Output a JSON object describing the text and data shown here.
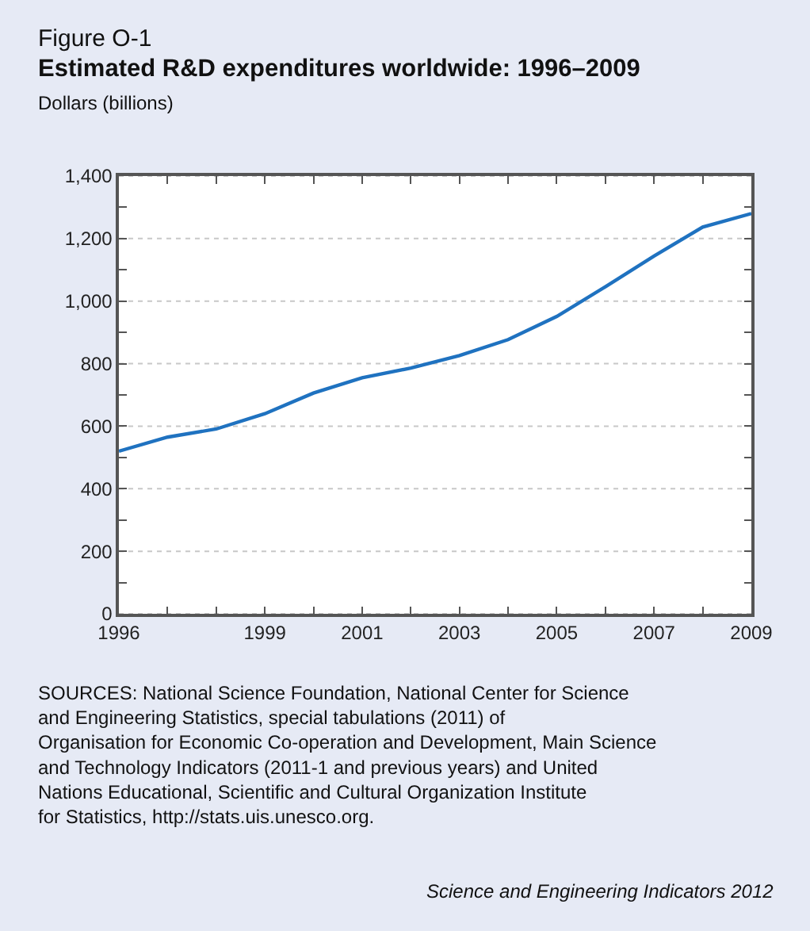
{
  "chart_data": {
    "type": "line",
    "title": "Figure O-1",
    "subtitle": "Estimated R&D expenditures worldwide: 1996–2009",
    "ylabel": "Dollars (billions)",
    "x": [
      1996,
      1997,
      1998,
      1999,
      2000,
      2001,
      2002,
      2003,
      2004,
      2005,
      2006,
      2007,
      2008,
      2009
    ],
    "series": [
      {
        "color": "#1f72c0",
        "values": [
          520,
          565,
          591,
          640,
          706,
          755,
          786,
          826,
          877,
          951,
          1046,
          1144,
          1237,
          1280
        ]
      }
    ],
    "xlim": [
      1996,
      2009
    ],
    "xticks": [
      1996,
      {
        "value": 1997,
        "label": null
      },
      {
        "value": 1998,
        "label": null
      },
      1999,
      {
        "value": 2000,
        "label": null
      },
      2001,
      {
        "value": 2002,
        "label": null
      },
      2003,
      {
        "value": 2004,
        "label": null
      },
      2005,
      {
        "value": 2006,
        "label": null
      },
      2007,
      {
        "value": 2008,
        "label": null
      },
      2009
    ],
    "ylim": [
      0,
      1400
    ],
    "yticks": [
      {
        "value": 0,
        "label": "0"
      },
      {
        "value": 100,
        "label": null
      },
      {
        "value": 200,
        "label": "200"
      },
      {
        "value": 300,
        "label": null
      },
      {
        "value": 400,
        "label": "400"
      },
      {
        "value": 500,
        "label": null
      },
      {
        "value": 600,
        "label": "600"
      },
      {
        "value": 700,
        "label": null
      },
      {
        "value": 800,
        "label": "800"
      },
      {
        "value": 900,
        "label": null
      },
      {
        "value": 1000,
        "label": "1,000"
      },
      {
        "value": 1100,
        "label": null
      },
      {
        "value": 1200,
        "label": "1,200"
      },
      {
        "value": 1300,
        "label": null
      },
      {
        "value": 1400,
        "label": "1,400"
      }
    ],
    "grid": "y",
    "legend": false,
    "marker": "none",
    "line_style": "solid",
    "annotations": [
      "SOURCES: National Science Foundation, National Center for Science and Engineering Statistics, special tabulations (2011) of Organisation for Economic Co-operation and Development, Main Science and Technology Indicators (2011-1 and previous years) and United Nations Educational, Scientific and Cultural Organization Institute for Statistics, http://stats.uis.unesco.org.",
      "Science and Engineering Indicators 2012"
    ]
  }
}
